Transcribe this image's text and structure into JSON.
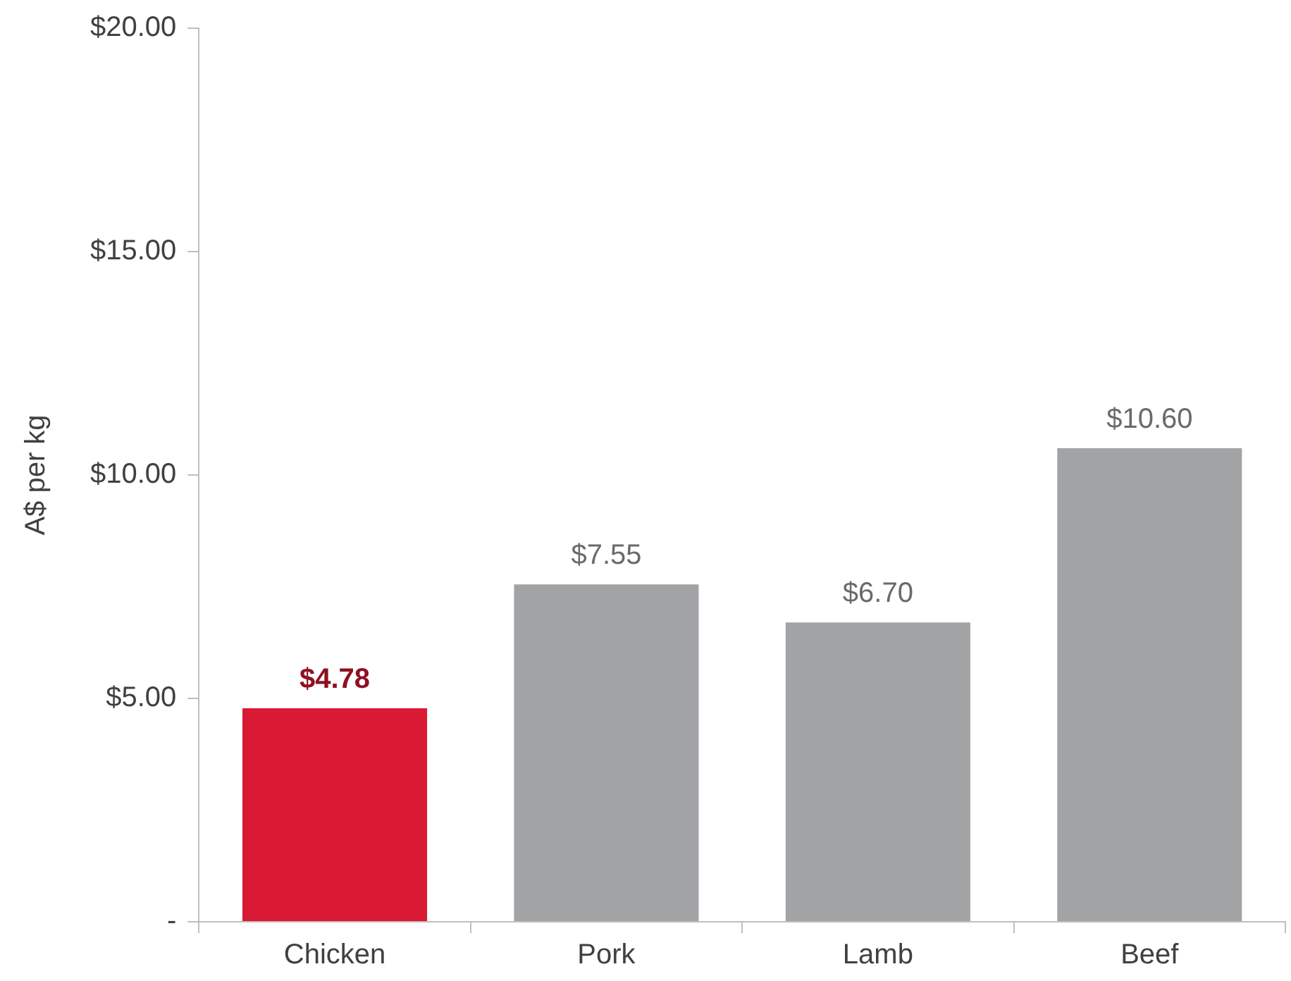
{
  "chart_data": {
    "type": "bar",
    "ylabel": "A$ per kg",
    "categories": [
      "Chicken",
      "Pork",
      "Lamb",
      "Beef"
    ],
    "values": [
      4.78,
      7.55,
      6.7,
      10.6
    ],
    "colors": [
      "#da1a35",
      "#a2a3a5",
      "#a2a3a5",
      "#a2a3a5"
    ],
    "value_labels": [
      "$4.78",
      "$7.55",
      "$6.70",
      "$10.60"
    ],
    "ylim": [
      0,
      20
    ],
    "yticks": [
      {
        "value": 0,
        "label": "-"
      },
      {
        "value": 5,
        "label": "$5.00"
      },
      {
        "value": 10,
        "label": "$10.00"
      },
      {
        "value": 15,
        "label": "$15.00"
      },
      {
        "value": 20,
        "label": "$20.00"
      }
    ],
    "grid": false,
    "legend": false
  }
}
